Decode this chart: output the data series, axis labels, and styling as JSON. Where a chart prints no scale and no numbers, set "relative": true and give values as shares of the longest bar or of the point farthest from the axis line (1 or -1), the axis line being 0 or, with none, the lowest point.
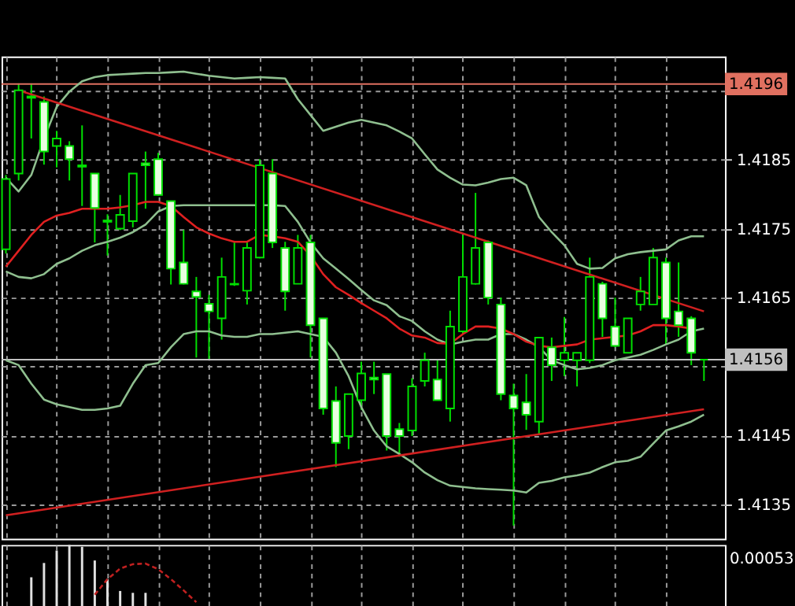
{
  "chart_data": [
    {
      "type": "candlestick",
      "color": "#00e000",
      "colors": [
        "#000000",
        "#000000",
        "#e8ffe0",
        "#e8ffe0",
        "#000000",
        "#e8ffe0",
        "#e8ffe0",
        "#e8ffe0",
        "#e8ffe0",
        "#000000",
        "#000000",
        "#e8ffe0",
        "#e8ffe0",
        "#e8ffe0",
        "#e8ffe0",
        "#e8ffe0",
        "#e8ffe0",
        "#000000",
        "#e8ffe0",
        "#000000",
        "#000000",
        "#e8ffe0",
        "#e8ffe0",
        "#000000",
        "#e8ffe0",
        "#e8ffe0",
        "#e8ffe0",
        "#000000",
        "#000000",
        "#e8ffe0",
        "#e8ffe0",
        "#e8ffe0",
        "#000000",
        "#000000",
        "#e8ffe0",
        "#000000",
        "#000000",
        "#000000",
        "#e8ffe0",
        "#e8ffe0",
        "#e8ffe0",
        "#e8ffe0",
        "#000000",
        "#e8ffe0",
        "#000000",
        "#000000",
        "#000000",
        "#e8ffe0",
        "#e8ffe0",
        "#000000",
        "#000000",
        "#000000",
        "#e8ffe0",
        "#e8ffe0",
        "#e8ffe0",
        "#00e000"
      ],
      "categories": [
        null,
        null,
        null,
        null,
        null,
        null,
        null,
        null,
        null,
        null,
        null,
        null,
        null,
        null,
        null,
        null,
        null,
        null,
        null,
        null,
        null,
        null,
        null,
        null,
        null,
        null,
        null,
        null,
        null,
        null,
        null,
        null,
        null,
        null,
        null,
        null,
        null,
        null,
        null,
        null,
        null,
        null,
        null,
        null,
        null,
        null,
        null,
        null,
        null,
        null,
        null,
        null,
        null,
        null,
        null,
        null
      ],
      "ohlc": [
        [
          1.4172,
          1.41828,
          1.41714,
          1.41822
        ],
        [
          1.4183,
          1.41961,
          1.4182,
          1.41951
        ],
        [
          1.41942,
          1.41961,
          1.41881,
          1.4194
        ],
        [
          1.41934,
          1.41942,
          1.41843,
          1.41862
        ],
        [
          1.4187,
          1.41892,
          1.41839,
          1.41881
        ],
        [
          1.4187,
          1.41877,
          1.4182,
          1.41851
        ],
        [
          1.41842,
          1.419,
          1.41783,
          1.4184
        ],
        [
          1.4183,
          1.4183,
          1.4173,
          1.4178
        ],
        [
          1.41762,
          1.41771,
          1.41711,
          1.4176
        ],
        [
          1.4175,
          1.41799,
          1.41748,
          1.4177
        ],
        [
          1.41761,
          1.4183,
          1.41752,
          1.4183
        ],
        [
          1.41845,
          1.41862,
          1.41779,
          1.41842
        ],
        [
          1.41851,
          1.4186,
          1.41798,
          1.41799
        ],
        [
          1.4179,
          1.4179,
          1.41669,
          1.41692
        ],
        [
          1.41701,
          1.41748,
          1.41669,
          1.4167
        ],
        [
          1.41659,
          1.4168,
          1.41563,
          1.41651
        ],
        [
          1.41641,
          1.41654,
          1.41559,
          1.4163
        ],
        [
          1.4162,
          1.41708,
          1.41589,
          1.4168
        ],
        [
          1.4167,
          1.4173,
          1.41667,
          1.41669
        ],
        [
          1.4166,
          1.4173,
          1.4164,
          1.41722
        ],
        [
          1.41708,
          1.41851,
          1.41707,
          1.41842
        ],
        [
          1.4183,
          1.41851,
          1.41722,
          1.4173
        ],
        [
          1.41722,
          1.41731,
          1.41631,
          1.41659
        ],
        [
          1.4167,
          1.41741,
          1.4167,
          1.41722
        ],
        [
          1.4173,
          1.41741,
          1.41563,
          1.4161
        ],
        [
          1.4162,
          1.4162,
          1.4148,
          1.41489
        ],
        [
          1.415,
          1.41521,
          1.41404,
          1.41439
        ],
        [
          1.41449,
          1.4151,
          1.4143,
          1.4151
        ],
        [
          1.41501,
          1.41557,
          1.41487,
          1.4154
        ],
        [
          1.41534,
          1.41557,
          1.4151,
          1.41531
        ],
        [
          1.41539,
          1.41539,
          1.41428,
          1.41449
        ],
        [
          1.41459,
          1.41468,
          1.41419,
          1.41449
        ],
        [
          1.41457,
          1.41533,
          1.41449,
          1.41521
        ],
        [
          1.41529,
          1.4157,
          1.41521,
          1.41559
        ],
        [
          1.41531,
          1.41559,
          1.41501,
          1.41501
        ],
        [
          1.41489,
          1.41631,
          1.4147,
          1.41608
        ],
        [
          1.41601,
          1.41741,
          1.41597,
          1.4168
        ],
        [
          1.4167,
          1.41802,
          1.41669,
          1.41722
        ],
        [
          1.4173,
          1.41733,
          1.4164,
          1.4165
        ],
        [
          1.4164,
          1.4165,
          1.41501,
          1.4151
        ],
        [
          1.41508,
          1.41525,
          1.41319,
          1.41489
        ],
        [
          1.41498,
          1.41539,
          1.41458,
          1.4148
        ],
        [
          1.4147,
          1.41592,
          1.41451,
          1.41592
        ],
        [
          1.41578,
          1.41592,
          1.41529,
          1.41552
        ],
        [
          1.41559,
          1.41622,
          1.41536,
          1.4157
        ],
        [
          1.41559,
          1.4157,
          1.41521,
          1.4157
        ],
        [
          1.41559,
          1.41708,
          1.41555,
          1.4168
        ],
        [
          1.4167,
          1.41673,
          1.41593,
          1.4162
        ],
        [
          1.41608,
          1.4165,
          1.41578,
          1.4158
        ],
        [
          1.4157,
          1.4162,
          1.4157,
          1.4162
        ],
        [
          1.4164,
          1.4168,
          1.41631,
          1.41659
        ],
        [
          1.4164,
          1.41722,
          1.4164,
          1.41708
        ],
        [
          1.41701,
          1.41708,
          1.41582,
          1.4162
        ],
        [
          1.4163,
          1.41701,
          1.41593,
          1.4161
        ],
        [
          1.4162,
          1.41623,
          1.41552,
          1.4157
        ],
        [
          1.4156,
          1.4156,
          1.41529,
          1.4156
        ]
      ],
      "series": [
        {
          "type": "line",
          "color": "#8fbf8f",
          "values": [
            1.41824,
            1.41804,
            1.41828,
            1.41881,
            1.41927,
            1.41949,
            1.41964,
            1.4197,
            1.41973,
            1.41974,
            1.41975,
            1.41976,
            1.41976,
            1.41977,
            1.41978,
            1.41975,
            1.41972,
            1.4197,
            1.41968,
            1.41969,
            1.4197,
            1.41969,
            1.41968,
            1.41938,
            1.41915,
            1.41892,
            1.41898,
            1.41904,
            1.41908,
            1.41904,
            1.419,
            1.41891,
            1.41881,
            1.41858,
            1.41836,
            1.41824,
            1.41814,
            1.41813,
            1.41817,
            1.41822,
            1.41824,
            1.41813,
            1.41767,
            1.41745,
            1.41726,
            1.41699,
            1.41692,
            1.41693,
            1.41707,
            1.41713,
            1.41716,
            1.41718,
            1.4172,
            1.41733,
            1.41739,
            1.41739
          ]
        },
        {
          "type": "line",
          "color": "#8fbf8f",
          "values": [
            1.41559,
            1.41552,
            1.41525,
            1.41502,
            1.41495,
            1.41491,
            1.41487,
            1.41487,
            1.41489,
            1.41493,
            1.41525,
            1.41552,
            1.41555,
            1.41578,
            1.41597,
            1.41601,
            1.41601,
            1.41595,
            1.41593,
            1.41593,
            1.41597,
            1.41597,
            1.41599,
            1.41601,
            1.41597,
            1.41593,
            1.4157,
            1.41536,
            1.41491,
            1.41457,
            1.41434,
            1.41423,
            1.41411,
            1.41396,
            1.41385,
            1.41377,
            1.41375,
            1.41373,
            1.41372,
            1.41371,
            1.4137,
            1.41367,
            1.41381,
            1.41384,
            1.41389,
            1.41392,
            1.41396,
            1.41404,
            1.41411,
            1.41413,
            1.41419,
            1.41438,
            1.41457,
            1.41463,
            1.4147,
            1.4148
          ]
        },
        {
          "type": "line",
          "color": "#8fbf8f",
          "values": [
            1.41688,
            1.4168,
            1.41678,
            1.41684,
            1.41699,
            1.41707,
            1.41718,
            1.41726,
            1.41731,
            1.41737,
            1.41745,
            1.41756,
            1.41775,
            1.41783,
            1.41784,
            1.41784,
            1.41784,
            1.41784,
            1.41784,
            1.41784,
            1.41784,
            1.41784,
            1.41783,
            1.4176,
            1.4173,
            1.41707,
            1.41692,
            1.41677,
            1.41661,
            1.41646,
            1.41639,
            1.41623,
            1.41616,
            1.41601,
            1.41589,
            1.41582,
            1.41586,
            1.41589,
            1.41589,
            1.41597,
            1.41597,
            1.41589,
            1.41578,
            1.41559,
            1.41552,
            1.41546,
            1.41548,
            1.41552,
            1.41559,
            1.41563,
            1.41567,
            1.41574,
            1.41582,
            1.41589,
            1.41601,
            1.41605
          ]
        },
        {
          "type": "line",
          "color": "#e02020",
          "values": [
            1.41695,
            1.41718,
            1.41741,
            1.4176,
            1.41769,
            1.41773,
            1.41779,
            1.41779,
            1.41779,
            1.41781,
            1.41784,
            1.41789,
            1.41789,
            1.41783,
            1.41767,
            1.41752,
            1.41743,
            1.41736,
            1.41731,
            1.41731,
            1.41741,
            1.41739,
            1.41736,
            1.41731,
            1.41711,
            1.41684,
            1.41665,
            1.41654,
            1.41642,
            1.41631,
            1.4162,
            1.41605,
            1.41595,
            1.41592,
            1.41584,
            1.41583,
            1.41597,
            1.41608,
            1.41608,
            1.41605,
            1.41597,
            1.41586,
            1.4158,
            1.41578,
            1.4158,
            1.41582,
            1.41589,
            1.41591,
            1.41593,
            1.41595,
            1.41601,
            1.4161,
            1.4161,
            1.41608,
            1.41605,
            null
          ]
        },
        {
          "type": "line",
          "color": "#d02020",
          "values": [
            null,
            1.41951,
            null,
            null,
            null,
            null,
            null,
            null,
            null,
            null,
            null,
            null,
            null,
            null,
            null,
            null,
            null,
            null,
            null,
            null,
            null,
            null,
            null,
            null,
            null,
            null,
            null,
            null,
            null,
            null,
            null,
            null,
            null,
            null,
            null,
            null,
            null,
            null,
            null,
            null,
            null,
            null,
            null,
            null,
            null,
            null,
            null,
            null,
            null,
            null,
            null,
            null,
            null,
            null,
            null,
            1.4163
          ]
        },
        {
          "type": "line",
          "color": "#d02020",
          "values": [
            1.41334,
            null,
            null,
            null,
            null,
            null,
            null,
            null,
            null,
            null,
            null,
            null,
            null,
            null,
            null,
            null,
            null,
            null,
            null,
            null,
            null,
            null,
            null,
            null,
            null,
            null,
            null,
            null,
            null,
            null,
            null,
            null,
            null,
            null,
            null,
            null,
            null,
            null,
            null,
            null,
            null,
            null,
            null,
            null,
            null,
            null,
            null,
            null,
            null,
            null,
            null,
            null,
            null,
            null,
            null,
            1.41488
          ]
        }
      ],
      "ylim": [
        1.413,
        1.42
      ],
      "yticks": [
        1.4135,
        1.4145,
        {
          "value": 1.4155,
          "label": null
        },
        1.4165,
        1.4175,
        1.4185,
        {
          "value": 1.4195,
          "label": null
        }
      ],
      "ref_lines": [
        {
          "axis": "y",
          "value": 1.4196,
          "label": "1.4196",
          "color": "#e07060"
        },
        {
          "axis": "y",
          "value": 1.4156,
          "label": "1.4156",
          "color": "#c0c0c0"
        }
      ],
      "grid": true,
      "tick_labels": "y"
    },
    {
      "type": "bar",
      "relative": true,
      "categories": [
        null,
        null,
        null,
        null,
        null,
        null,
        null,
        null,
        null,
        null,
        null,
        null,
        null,
        null,
        null,
        null,
        null,
        null,
        null,
        null,
        null,
        null,
        null,
        null,
        null,
        null,
        null,
        null,
        null,
        null,
        null,
        null,
        null,
        null,
        null,
        null,
        null,
        null,
        null,
        null,
        null,
        null,
        null,
        null,
        null,
        null,
        null,
        null,
        null,
        null,
        null,
        null,
        null,
        null,
        null,
        null
      ],
      "series": [
        {
          "color": "#e0e0e0",
          "values": [
            null,
            null,
            0.48,
            0.71,
            0.91,
            1,
            0.97,
            0.75,
            0.45,
            0.26,
            0.23,
            0.23,
            null,
            null,
            null,
            null,
            null,
            null,
            null,
            null,
            null,
            null,
            null,
            null,
            null,
            null,
            null,
            null,
            null,
            null,
            null,
            null,
            null,
            null,
            null,
            null,
            null,
            null,
            null,
            null,
            null,
            null,
            null,
            null,
            null,
            null,
            null,
            null,
            null,
            null,
            null,
            null,
            null,
            null,
            null,
            null
          ]
        },
        {
          "type": "line",
          "color": "#c02020",
          "line_style": "dashed",
          "values": [
            null,
            null,
            null,
            null,
            null,
            null,
            null,
            0.2,
            0.45,
            0.62,
            0.69,
            0.7,
            0.61,
            0.45,
            0.27,
            0.08,
            null,
            null,
            null,
            null,
            null,
            null,
            null,
            null,
            null,
            null,
            null,
            null,
            null,
            null,
            null,
            null,
            null,
            null,
            null,
            null,
            null,
            null,
            null,
            null,
            null,
            null,
            null,
            null,
            null,
            null,
            null,
            null,
            null,
            null,
            null,
            null,
            null,
            null,
            null,
            null
          ]
        }
      ],
      "annotations": [
        "0.00053"
      ],
      "grid": "x",
      "tick_labels": false
    }
  ]
}
